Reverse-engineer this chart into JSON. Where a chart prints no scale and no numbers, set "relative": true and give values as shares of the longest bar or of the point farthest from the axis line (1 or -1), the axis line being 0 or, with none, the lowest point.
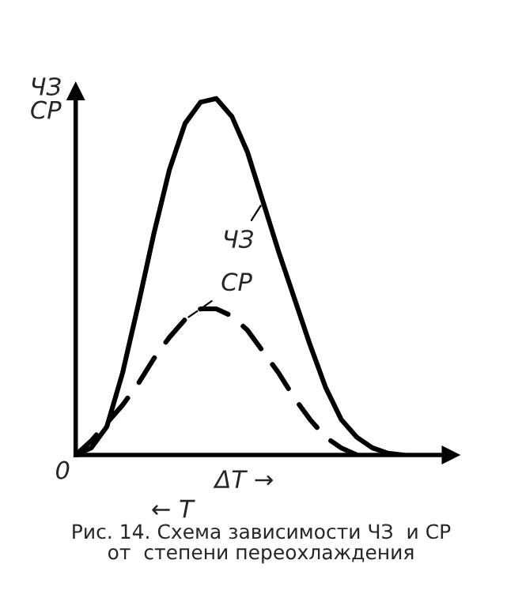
{
  "chart_data": {
    "type": "line",
    "relative": true,
    "ylabel": "ЧЗ\nСР",
    "xlabel": "ΔT →",
    "annotations": [
      "0",
      "← T",
      "Рис. 14. Схема зависимости ЧЗ  и СР\nот  степени переохлаждения"
    ],
    "categories": [
      null,
      null,
      null,
      null,
      null,
      null,
      null,
      null,
      null,
      null,
      null,
      null,
      null,
      null,
      null,
      null,
      null,
      null,
      null,
      null,
      null,
      null,
      null,
      null,
      null
    ],
    "series": [
      {
        "name": "ЧЗ",
        "color": "#000000",
        "line_style": "solid",
        "values": [
          0,
          0.02,
          0.08,
          0.23,
          0.42,
          0.62,
          0.8,
          0.93,
          0.99,
          1.0,
          0.95,
          0.85,
          0.71,
          0.57,
          0.44,
          0.31,
          0.19,
          0.1,
          0.05,
          0.02,
          0.005,
          0,
          null,
          null,
          null
        ]
      },
      {
        "name": "СР",
        "color": "#000000",
        "line_style": "dashed",
        "values": [
          0,
          0.04,
          0.09,
          0.14,
          0.2,
          0.27,
          0.33,
          0.38,
          0.41,
          0.41,
          0.39,
          0.35,
          0.29,
          0.23,
          0.16,
          0.1,
          0.05,
          0.02,
          0,
          null,
          null,
          null,
          null,
          null,
          null
        ]
      }
    ]
  }
}
